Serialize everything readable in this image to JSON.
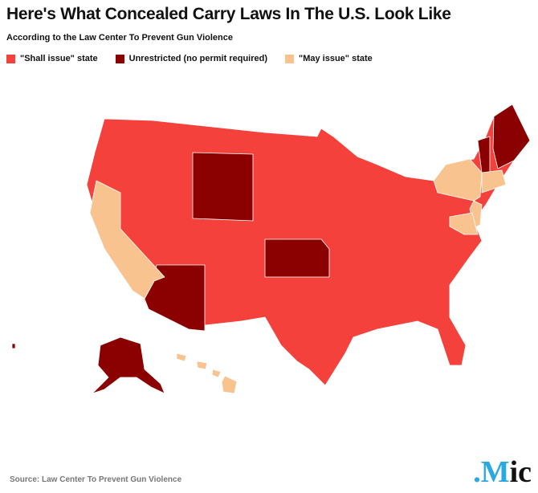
{
  "header": {
    "title": "Here's What Concealed Carry Laws In The U.S. Look Like",
    "subtitle": "According to the Law Center To Prevent Gun Violence"
  },
  "legend": [
    {
      "label": "\"Shall issue\" state",
      "color": "#f5413b"
    },
    {
      "label": "Unrestricted (no permit required)",
      "color": "#8b0000"
    },
    {
      "label": "\"May issue\" state",
      "color": "#f9c38f"
    }
  ],
  "footer": {
    "source": "Source: Law Center To Prevent Gun Violence",
    "logo": ".Mic"
  }
}
